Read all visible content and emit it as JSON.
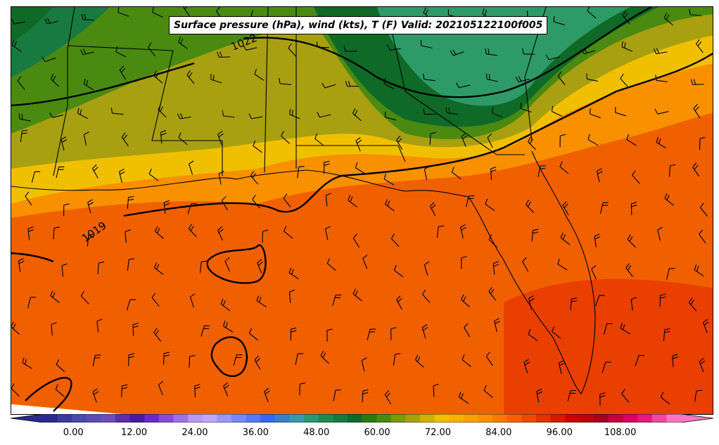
{
  "title": "Surface pressure (hPa), wind (kts), T (F) Valid: 202105122100f005",
  "isobar_labels": [
    {
      "text": "1022"
    },
    {
      "text": "1019"
    }
  ],
  "colorbar": {
    "min": -6,
    "max": 120,
    "step": 3,
    "ticks": [
      "0.00",
      "12.00",
      "24.00",
      "36.00",
      "48.00",
      "60.00",
      "72.00",
      "84.00",
      "96.00",
      "108.00"
    ],
    "colors": [
      "#2a2a8a",
      "#3b3b9e",
      "#4a4aa8",
      "#5a4fb0",
      "#6950b8",
      "#5a2fa8",
      "#4b1aa0",
      "#6a2ac8",
      "#8a4ad8",
      "#a070e8",
      "#b898f0",
      "#c0a8f8",
      "#9898f8",
      "#7888f8",
      "#5878f8",
      "#3868f0",
      "#3a80c8",
      "#3a98a8",
      "#2a9870",
      "#1f8a50",
      "#187a40",
      "#0f6a28",
      "#2a7a10",
      "#4a8a10",
      "#7a9a10",
      "#a8a010",
      "#d0b000",
      "#f0c000",
      "#f8b000",
      "#f8a000",
      "#f89000",
      "#f87800",
      "#f86000",
      "#f04800",
      "#e83000",
      "#d81800",
      "#c80000",
      "#b80010",
      "#a00020",
      "#c00040",
      "#d80060",
      "#e81880",
      "#f048a0",
      "#f878c0"
    ]
  },
  "legend_colors": {
    "cool_green": "#2e9a68",
    "dark_green": "#0f6a28",
    "olive": "#4a8a10",
    "khaki": "#a8a010",
    "yellow": "#f0c000",
    "orange": "#f89000",
    "dark_orange": "#f06000",
    "red_orange": "#e83a00"
  }
}
